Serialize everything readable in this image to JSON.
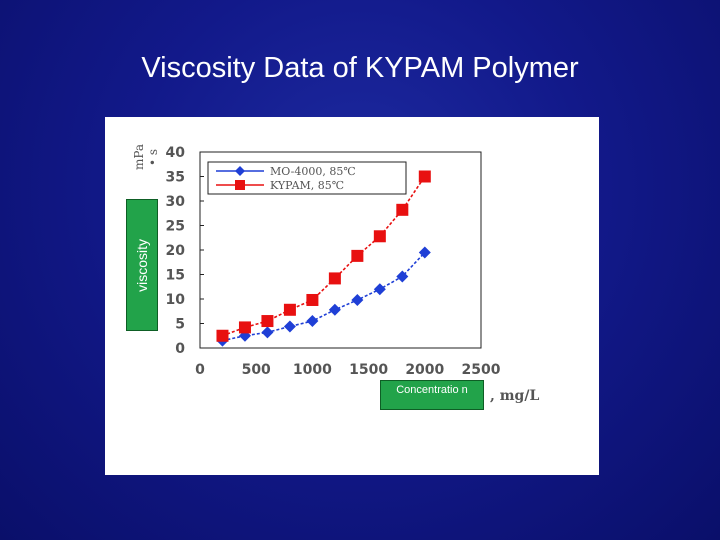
{
  "slide": {
    "title": "Viscosity Data of KYPAM Polymer"
  },
  "labels": {
    "y_axis": "viscosity",
    "x_axis": "Concentratio n",
    "y_unit": "mPa • s",
    "x_unit": ", mg/L"
  },
  "colors": {
    "background": "#12198a",
    "series_mo4000": "#1f3fd6",
    "series_kypam": "#e81010",
    "label_box": "#22a34a"
  },
  "chart_data": {
    "type": "line",
    "title": "",
    "xlabel": "Concentration",
    "ylabel": "viscosity",
    "xlim": [
      0,
      2500
    ],
    "ylim": [
      0,
      40
    ],
    "xticks": [
      0,
      500,
      1000,
      1500,
      2000,
      2500
    ],
    "yticks": [
      0,
      5,
      10,
      15,
      20,
      25,
      30,
      35,
      40
    ],
    "grid": false,
    "legend_position": "top-left",
    "series": [
      {
        "name": "MO-4000, 85℃",
        "marker": "diamond",
        "x": [
          200,
          400,
          600,
          800,
          1000,
          1200,
          1400,
          1600,
          1800,
          2000
        ],
        "y": [
          1.5,
          2.5,
          3.2,
          4.4,
          5.5,
          7.8,
          9.8,
          12.0,
          14.6,
          19.5
        ]
      },
      {
        "name": "KYPAM, 85℃",
        "marker": "square",
        "x": [
          200,
          400,
          600,
          800,
          1000,
          1200,
          1400,
          1600,
          1800,
          2000
        ],
        "y": [
          2.5,
          4.2,
          5.5,
          7.8,
          9.8,
          14.2,
          18.8,
          22.8,
          28.2,
          35.0
        ]
      }
    ]
  }
}
